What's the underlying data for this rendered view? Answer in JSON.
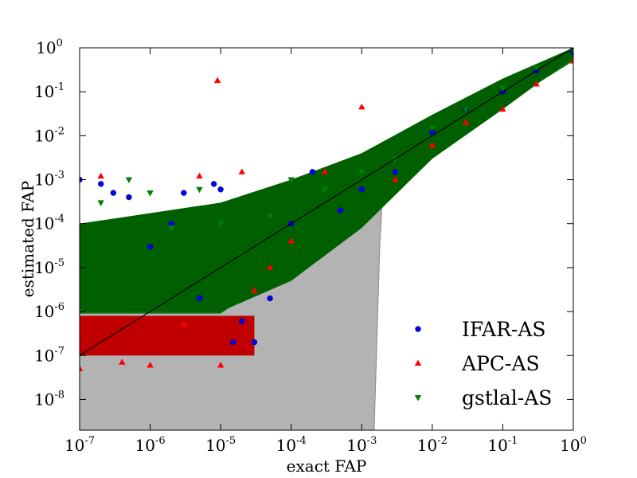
{
  "chart_data": {
    "type": "scatter",
    "xlabel": "exact FAP",
    "ylabel": "estimated FAP",
    "xscale": "log",
    "yscale": "log",
    "xlim": [
      1e-07,
      1
    ],
    "ylim": [
      2e-09,
      1
    ],
    "x_ticks": [
      {
        "mantissa": "10",
        "exp": "-7",
        "value": 1e-07
      },
      {
        "mantissa": "10",
        "exp": "-6",
        "value": 1e-06
      },
      {
        "mantissa": "10",
        "exp": "-5",
        "value": 1e-05
      },
      {
        "mantissa": "10",
        "exp": "-4",
        "value": 0.0001
      },
      {
        "mantissa": "10",
        "exp": "-3",
        "value": 0.001
      },
      {
        "mantissa": "10",
        "exp": "-2",
        "value": 0.01
      },
      {
        "mantissa": "10",
        "exp": "-1",
        "value": 0.1
      },
      {
        "mantissa": "10",
        "exp": "0",
        "value": 1
      }
    ],
    "y_ticks": [
      {
        "mantissa": "10",
        "exp": "-8",
        "value": 1e-08
      },
      {
        "mantissa": "10",
        "exp": "-7",
        "value": 1e-07
      },
      {
        "mantissa": "10",
        "exp": "-6",
        "value": 1e-06
      },
      {
        "mantissa": "10",
        "exp": "-5",
        "value": 1e-05
      },
      {
        "mantissa": "10",
        "exp": "-4",
        "value": 0.0001
      },
      {
        "mantissa": "10",
        "exp": "-3",
        "value": 0.001
      },
      {
        "mantissa": "10",
        "exp": "-2",
        "value": 0.01
      },
      {
        "mantissa": "10",
        "exp": "-1",
        "value": 0.1
      },
      {
        "mantissa": "10",
        "exp": "0",
        "value": 1
      }
    ],
    "reference_line": {
      "from": [
        1e-07,
        1e-07
      ],
      "to": [
        1,
        1
      ],
      "color": "#000000"
    },
    "background_band": {
      "color": "#b3b3b3",
      "outline": "#888888",
      "upper": [
        [
          1e-07,
          5e-06
        ],
        [
          1e-06,
          8e-06
        ],
        [
          1e-05,
          2e-05
        ],
        [
          0.0001,
          0.00012
        ],
        [
          0.001,
          0.0011
        ],
        [
          0.01,
          0.01
        ],
        [
          0.1,
          0.1
        ],
        [
          1,
          1
        ]
      ],
      "lower": [
        [
          1,
          1
        ],
        [
          0.1,
          0.1
        ],
        [
          0.01,
          0.01
        ],
        [
          0.003,
          0.002
        ],
        [
          0.002,
          0.0006
        ],
        [
          0.0018,
          3e-05
        ],
        [
          0.0015,
          2e-09
        ],
        [
          1e-07,
          2e-09
        ]
      ]
    },
    "series": [
      {
        "name": "IFAR-AS",
        "marker": "circle",
        "color": "#0000ff",
        "x": [
          1e-07,
          2e-07,
          3e-07,
          5e-07,
          1e-06,
          2e-06,
          3e-06,
          5e-06,
          8e-06,
          1e-05,
          1.5e-05,
          2e-05,
          3e-05,
          5e-05,
          0.0001,
          0.0002,
          0.0005,
          0.001,
          0.003,
          0.01,
          0.03,
          0.1,
          0.3,
          1
        ],
        "y": [
          0.001,
          0.0008,
          0.0005,
          0.0004,
          3e-05,
          0.0001,
          0.0005,
          2e-06,
          0.0008,
          0.0006,
          2e-07,
          6e-07,
          2e-07,
          2e-06,
          0.0001,
          0.0015,
          0.0002,
          0.0006,
          0.0015,
          0.012,
          0.04,
          0.1,
          0.3,
          0.8
        ]
      },
      {
        "name": "APC-AS",
        "marker": "triangle-up",
        "color": "#ff0000",
        "x": [
          1e-07,
          2e-07,
          4e-07,
          1e-06,
          3e-06,
          5e-06,
          9e-06,
          1e-05,
          2e-05,
          3e-05,
          5e-05,
          0.0001,
          0.0003,
          0.001,
          0.003,
          0.01,
          0.03,
          0.1,
          0.3,
          1
        ],
        "y": [
          5e-08,
          0.0012,
          7e-08,
          6e-08,
          5e-07,
          0.0012,
          0.18,
          6e-08,
          0.0015,
          3e-06,
          1e-05,
          4e-05,
          0.0015,
          0.045,
          0.001,
          0.006,
          0.02,
          0.04,
          0.15,
          0.5
        ]
      },
      {
        "name": "gstlal-AS",
        "marker": "triangle-down",
        "color": "#007f00",
        "x": [
          1e-07,
          2e-07,
          5e-07,
          1e-06,
          2e-06,
          5e-06,
          1e-05,
          2e-05,
          5e-05,
          0.0001,
          0.0003,
          0.001,
          0.003,
          0.01,
          0.03,
          0.1,
          0.3,
          1
        ],
        "y": [
          1e-06,
          0.0003,
          0.001,
          0.0005,
          8e-05,
          0.0006,
          0.0001,
          2e-05,
          0.00015,
          0.001,
          0.0006,
          0.0015,
          0.003,
          0.015,
          0.04,
          0.12,
          0.35,
          0.9
        ]
      }
    ],
    "legend": {
      "position": "lower-right",
      "entries": [
        {
          "label": "IFAR-AS",
          "marker": "circle",
          "color": "#0000ff"
        },
        {
          "label": "APC-AS",
          "marker": "triangle-up",
          "color": "#ff0000"
        },
        {
          "label": "gstlal-AS",
          "marker": "triangle-down",
          "color": "#007f00"
        }
      ]
    },
    "grid": false
  }
}
